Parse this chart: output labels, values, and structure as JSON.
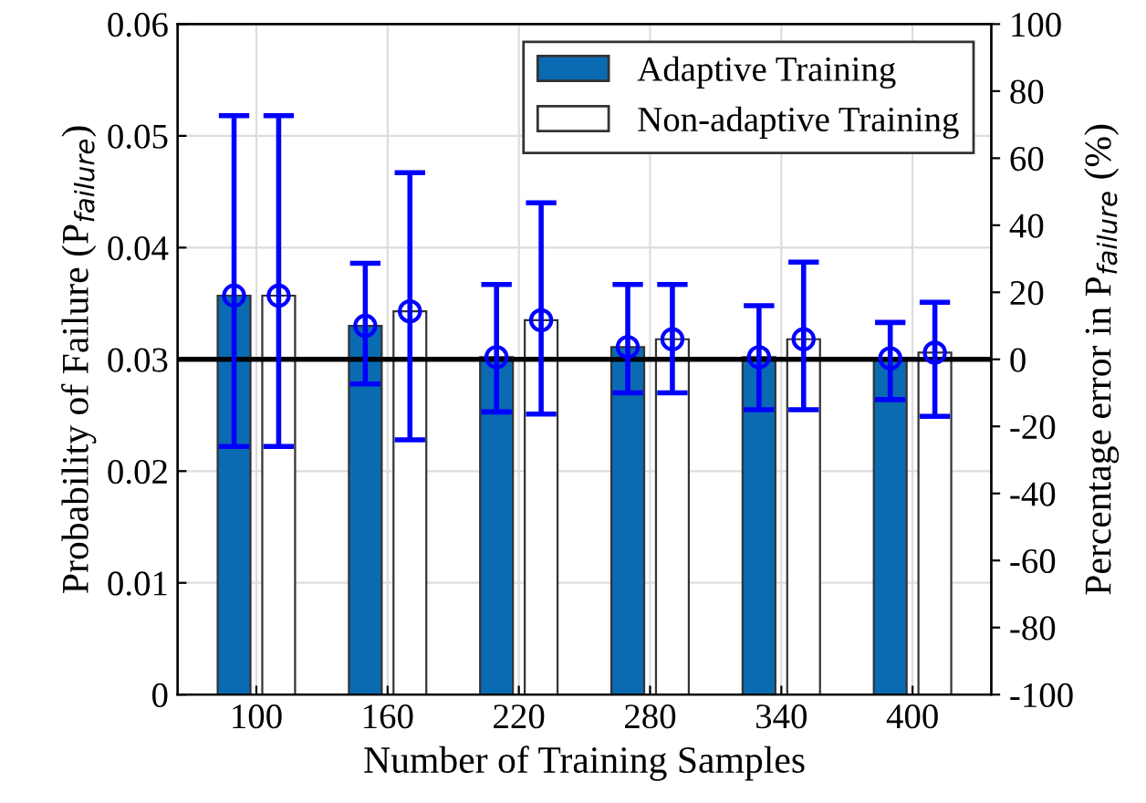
{
  "chart_data": {
    "type": "bar",
    "xlabel": "Number of Training Samples",
    "ylabel": "Probability of Failure (P$_{failure}$)",
    "y2label": "Percentage error in P$_{failure}$ (%)",
    "categories": [
      "100",
      "160",
      "220",
      "280",
      "340",
      "400"
    ],
    "series": [
      {
        "name": "Adaptive Training",
        "color": "#0a6bb3",
        "values": [
          0.0357,
          0.033,
          0.0302,
          0.0311,
          0.0302,
          0.0301
        ]
      },
      {
        "name": "Non-adaptive Training",
        "color": "#ffffff",
        "values": [
          0.0357,
          0.0343,
          0.0335,
          0.0318,
          0.0318,
          0.0306
        ]
      },
      {
        "type": "scatter",
        "color": "#0000ff",
        "x": [
          "100",
          "160",
          "220",
          "280",
          "340",
          "400"
        ],
        "values": [
          0.0357,
          0.033,
          0.0302,
          0.0311,
          0.0302,
          0.0301
        ],
        "errors": [
          [
            0.0222,
            0.0518
          ],
          [
            0.0278,
            0.0386
          ],
          [
            0.0253,
            0.0367
          ],
          [
            0.027,
            0.0367
          ],
          [
            0.0255,
            0.0348
          ],
          [
            0.0264,
            0.0333
          ]
        ]
      },
      {
        "type": "scatter",
        "color": "#0000ff",
        "x": [
          "100",
          "160",
          "220",
          "280",
          "340",
          "400"
        ],
        "values": [
          0.0357,
          0.0343,
          0.0335,
          0.0318,
          0.0318,
          0.0306
        ],
        "errors": [
          [
            0.0222,
            0.0518
          ],
          [
            0.0228,
            0.0467
          ],
          [
            0.0251,
            0.044
          ],
          [
            0.027,
            0.0367
          ],
          [
            0.0255,
            0.0387
          ],
          [
            0.0249,
            0.0351
          ]
        ]
      }
    ],
    "marker": "circle",
    "ylim": [
      0,
      0.06
    ],
    "yticks": [
      0,
      0.01,
      0.02,
      0.03,
      0.04,
      0.05,
      0.06
    ],
    "y2lim": [
      -100,
      100
    ],
    "y2ticks": [
      -100,
      -80,
      -60,
      -40,
      -20,
      0,
      20,
      40,
      60,
      80,
      100
    ],
    "ref_lines": [
      {
        "axis": "y",
        "value": 0.03,
        "color": "#000000"
      }
    ],
    "grid": true,
    "legend": "top right"
  }
}
